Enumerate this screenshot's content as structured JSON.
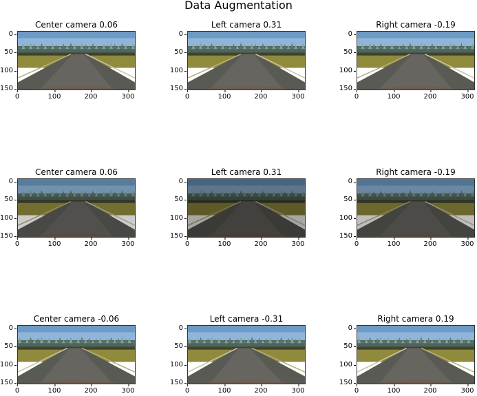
{
  "figure": {
    "title": "Data Augmentation",
    "xticks": [
      "0",
      "100",
      "200",
      "300"
    ],
    "yticks": [
      "0",
      "50",
      "100",
      "150"
    ],
    "panels": [
      {
        "title": "Center camera 0.06",
        "brightness": 1.0,
        "flip": false
      },
      {
        "title": "Left camera 0.31",
        "brightness": 1.0,
        "flip": false
      },
      {
        "title": "Right camera -0.19",
        "brightness": 1.0,
        "flip": false
      },
      {
        "title": "Center camera 0.06",
        "brightness": 0.8,
        "flip": false
      },
      {
        "title": "Left camera 0.31",
        "brightness": 0.65,
        "flip": false
      },
      {
        "title": "Right camera -0.19",
        "brightness": 0.75,
        "flip": false
      },
      {
        "title": "Center camera -0.06",
        "brightness": 1.0,
        "flip": true
      },
      {
        "title": "Left camera -0.31",
        "brightness": 1.0,
        "flip": true
      },
      {
        "title": "Right camera 0.19",
        "brightness": 1.0,
        "flip": true
      }
    ]
  }
}
